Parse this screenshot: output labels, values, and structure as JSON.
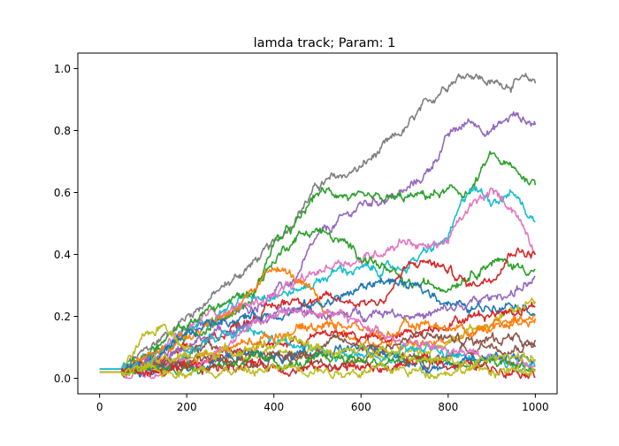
{
  "chart_data": {
    "type": "line",
    "title": "lamda track; Param: 1",
    "xlabel": "",
    "ylabel": "",
    "xlim": [
      -50,
      1050
    ],
    "ylim": [
      -0.05,
      1.05
    ],
    "xticks": [
      0,
      200,
      400,
      600,
      800,
      1000
    ],
    "yticks": [
      0.0,
      0.2,
      0.4,
      0.6,
      0.8,
      1.0
    ],
    "xtick_labels": [
      "0",
      "200",
      "400",
      "600",
      "800",
      "1000"
    ],
    "ytick_labels": [
      "0.0",
      "0.2",
      "0.4",
      "0.6",
      "0.8",
      "1.0"
    ],
    "grid": false,
    "legend": "none",
    "series": [
      {
        "color": "#7f7f7f",
        "start": 0.03,
        "keypoints": [
          [
            0,
            0.03
          ],
          [
            50,
            0.03
          ],
          [
            100,
            0.08
          ],
          [
            200,
            0.2
          ],
          [
            300,
            0.31
          ],
          [
            400,
            0.43
          ],
          [
            500,
            0.62
          ],
          [
            600,
            0.68
          ],
          [
            700,
            0.8
          ],
          [
            800,
            0.96
          ],
          [
            850,
            0.99
          ],
          [
            900,
            0.95
          ],
          [
            1000,
            0.96
          ]
        ]
      },
      {
        "color": "#9467bd",
        "start": 0.02,
        "keypoints": [
          [
            0,
            0.02
          ],
          [
            50,
            0.02
          ],
          [
            150,
            0.1
          ],
          [
            250,
            0.18
          ],
          [
            350,
            0.23
          ],
          [
            450,
            0.32
          ],
          [
            500,
            0.45
          ],
          [
            600,
            0.56
          ],
          [
            700,
            0.6
          ],
          [
            750,
            0.66
          ],
          [
            800,
            0.78
          ],
          [
            850,
            0.83
          ],
          [
            900,
            0.8
          ],
          [
            950,
            0.85
          ],
          [
            1000,
            0.82
          ]
        ]
      },
      {
        "color": "#2ca02c",
        "start": 0.02,
        "keypoints": [
          [
            0,
            0.02
          ],
          [
            50,
            0.02
          ],
          [
            150,
            0.1
          ],
          [
            250,
            0.17
          ],
          [
            350,
            0.25
          ],
          [
            400,
            0.44
          ],
          [
            450,
            0.49
          ],
          [
            500,
            0.6
          ],
          [
            550,
            0.6
          ],
          [
            600,
            0.57
          ],
          [
            700,
            0.58
          ],
          [
            800,
            0.6
          ],
          [
            850,
            0.6
          ],
          [
            900,
            0.72
          ],
          [
            950,
            0.67
          ],
          [
            1000,
            0.63
          ]
        ]
      },
      {
        "color": "#17becf",
        "start": 0.03,
        "keypoints": [
          [
            0,
            0.03
          ],
          [
            50,
            0.03
          ],
          [
            150,
            0.1
          ],
          [
            250,
            0.2
          ],
          [
            350,
            0.27
          ],
          [
            450,
            0.28
          ],
          [
            550,
            0.35
          ],
          [
            650,
            0.35
          ],
          [
            700,
            0.36
          ],
          [
            800,
            0.45
          ],
          [
            850,
            0.62
          ],
          [
            900,
            0.58
          ],
          [
            950,
            0.6
          ],
          [
            1000,
            0.5
          ]
        ]
      },
      {
        "color": "#e377c2",
        "start": 0.02,
        "keypoints": [
          [
            0,
            0.02
          ],
          [
            50,
            0.02
          ],
          [
            150,
            0.1
          ],
          [
            250,
            0.21
          ],
          [
            350,
            0.24
          ],
          [
            450,
            0.3
          ],
          [
            550,
            0.38
          ],
          [
            600,
            0.38
          ],
          [
            700,
            0.45
          ],
          [
            750,
            0.42
          ],
          [
            800,
            0.45
          ],
          [
            850,
            0.55
          ],
          [
            900,
            0.6
          ],
          [
            950,
            0.55
          ],
          [
            1000,
            0.42
          ]
        ]
      },
      {
        "color": "#2ca02c",
        "start": 0.02,
        "keypoints": [
          [
            0,
            0.02
          ],
          [
            50,
            0.02
          ],
          [
            150,
            0.12
          ],
          [
            250,
            0.22
          ],
          [
            300,
            0.25
          ],
          [
            350,
            0.28
          ],
          [
            400,
            0.38
          ],
          [
            450,
            0.46
          ],
          [
            500,
            0.48
          ],
          [
            550,
            0.44
          ],
          [
            600,
            0.4
          ],
          [
            650,
            0.36
          ],
          [
            700,
            0.3
          ],
          [
            800,
            0.3
          ],
          [
            900,
            0.38
          ],
          [
            1000,
            0.35
          ]
        ]
      },
      {
        "color": "#d62728",
        "start": 0.02,
        "keypoints": [
          [
            0,
            0.02
          ],
          [
            50,
            0.02
          ],
          [
            150,
            0.06
          ],
          [
            250,
            0.12
          ],
          [
            350,
            0.2
          ],
          [
            450,
            0.26
          ],
          [
            550,
            0.25
          ],
          [
            650,
            0.25
          ],
          [
            700,
            0.35
          ],
          [
            750,
            0.38
          ],
          [
            800,
            0.35
          ],
          [
            850,
            0.3
          ],
          [
            900,
            0.33
          ],
          [
            950,
            0.42
          ],
          [
            1000,
            0.4
          ]
        ]
      },
      {
        "color": "#ff7f0e",
        "start": 0.02,
        "keypoints": [
          [
            0,
            0.02
          ],
          [
            50,
            0.02
          ],
          [
            150,
            0.1
          ],
          [
            250,
            0.18
          ],
          [
            300,
            0.22
          ],
          [
            350,
            0.26
          ],
          [
            400,
            0.37
          ],
          [
            450,
            0.32
          ],
          [
            500,
            0.25
          ],
          [
            550,
            0.15
          ],
          [
            600,
            0.12
          ],
          [
            700,
            0.1
          ],
          [
            800,
            0.12
          ],
          [
            900,
            0.16
          ],
          [
            1000,
            0.2
          ]
        ]
      },
      {
        "color": "#1f77b4",
        "start": 0.02,
        "keypoints": [
          [
            0,
            0.02
          ],
          [
            50,
            0.02
          ],
          [
            150,
            0.08
          ],
          [
            250,
            0.18
          ],
          [
            350,
            0.2
          ],
          [
            450,
            0.22
          ],
          [
            550,
            0.26
          ],
          [
            650,
            0.32
          ],
          [
            750,
            0.28
          ],
          [
            850,
            0.22
          ],
          [
            950,
            0.25
          ],
          [
            1000,
            0.22
          ]
        ]
      },
      {
        "color": "#9467bd",
        "start": 0.02,
        "keypoints": [
          [
            0,
            0.02
          ],
          [
            50,
            0.02
          ],
          [
            150,
            0.06
          ],
          [
            250,
            0.14
          ],
          [
            350,
            0.18
          ],
          [
            450,
            0.22
          ],
          [
            550,
            0.2
          ],
          [
            650,
            0.22
          ],
          [
            750,
            0.2
          ],
          [
            850,
            0.24
          ],
          [
            950,
            0.28
          ],
          [
            1000,
            0.32
          ]
        ]
      },
      {
        "color": "#bcbd22",
        "start": 0.02,
        "keypoints": [
          [
            0,
            0.02
          ],
          [
            50,
            0.02
          ],
          [
            100,
            0.12
          ],
          [
            150,
            0.18
          ],
          [
            200,
            0.1
          ],
          [
            300,
            0.06
          ],
          [
            400,
            0.08
          ],
          [
            500,
            0.1
          ],
          [
            600,
            0.06
          ],
          [
            700,
            0.08
          ],
          [
            800,
            0.12
          ],
          [
            900,
            0.18
          ],
          [
            1000,
            0.25
          ]
        ]
      },
      {
        "color": "#d62728",
        "start": 0.02,
        "keypoints": [
          [
            0,
            0.02
          ],
          [
            50,
            0.02
          ],
          [
            150,
            0.04
          ],
          [
            250,
            0.06
          ],
          [
            350,
            0.1
          ],
          [
            450,
            0.12
          ],
          [
            550,
            0.15
          ],
          [
            650,
            0.12
          ],
          [
            750,
            0.16
          ],
          [
            850,
            0.2
          ],
          [
            950,
            0.22
          ],
          [
            1000,
            0.24
          ]
        ]
      },
      {
        "color": "#8c564b",
        "start": 0.02,
        "keypoints": [
          [
            0,
            0.02
          ],
          [
            50,
            0.02
          ],
          [
            150,
            0.05
          ],
          [
            250,
            0.1
          ],
          [
            350,
            0.08
          ],
          [
            450,
            0.06
          ],
          [
            550,
            0.04
          ],
          [
            650,
            0.08
          ],
          [
            750,
            0.05
          ],
          [
            850,
            0.1
          ],
          [
            950,
            0.14
          ],
          [
            1000,
            0.1
          ]
        ]
      },
      {
        "color": "#17becf",
        "start": 0.03,
        "keypoints": [
          [
            0,
            0.03
          ],
          [
            50,
            0.03
          ],
          [
            150,
            0.05
          ],
          [
            250,
            0.12
          ],
          [
            350,
            0.15
          ],
          [
            450,
            0.1
          ],
          [
            550,
            0.08
          ],
          [
            650,
            0.06
          ],
          [
            750,
            0.1
          ],
          [
            850,
            0.06
          ],
          [
            950,
            0.04
          ],
          [
            1000,
            0.05
          ]
        ]
      },
      {
        "color": "#ff7f0e",
        "start": 0.02,
        "keypoints": [
          [
            0,
            0.02
          ],
          [
            50,
            0.02
          ],
          [
            150,
            0.04
          ],
          [
            250,
            0.08
          ],
          [
            350,
            0.12
          ],
          [
            450,
            0.16
          ],
          [
            550,
            0.18
          ],
          [
            650,
            0.14
          ],
          [
            750,
            0.18
          ],
          [
            850,
            0.15
          ],
          [
            950,
            0.2
          ],
          [
            1000,
            0.18
          ]
        ]
      },
      {
        "color": "#e377c2",
        "start": 0.02,
        "keypoints": [
          [
            0,
            0.02
          ],
          [
            50,
            0.02
          ],
          [
            150,
            0.03
          ],
          [
            250,
            0.06
          ],
          [
            350,
            0.18
          ],
          [
            450,
            0.22
          ],
          [
            550,
            0.2
          ],
          [
            650,
            0.15
          ],
          [
            750,
            0.1
          ],
          [
            850,
            0.08
          ],
          [
            950,
            0.06
          ],
          [
            1000,
            0.04
          ]
        ]
      },
      {
        "color": "#1f77b4",
        "start": 0.02,
        "keypoints": [
          [
            0,
            0.02
          ],
          [
            50,
            0.02
          ],
          [
            150,
            0.03
          ],
          [
            250,
            0.05
          ],
          [
            350,
            0.08
          ],
          [
            450,
            0.06
          ],
          [
            550,
            0.1
          ],
          [
            650,
            0.08
          ],
          [
            750,
            0.04
          ],
          [
            850,
            0.05
          ],
          [
            950,
            0.08
          ],
          [
            1000,
            0.06
          ]
        ]
      },
      {
        "color": "#8c564b",
        "start": 0.02,
        "keypoints": [
          [
            0,
            0.02
          ],
          [
            50,
            0.02
          ],
          [
            150,
            0.04
          ],
          [
            250,
            0.07
          ],
          [
            350,
            0.05
          ],
          [
            450,
            0.08
          ],
          [
            550,
            0.12
          ],
          [
            650,
            0.1
          ],
          [
            750,
            0.14
          ],
          [
            850,
            0.12
          ],
          [
            950,
            0.1
          ],
          [
            1000,
            0.12
          ]
        ]
      },
      {
        "color": "#2ca02c",
        "start": 0.02,
        "keypoints": [
          [
            0,
            0.02
          ],
          [
            50,
            0.02
          ],
          [
            150,
            0.03
          ],
          [
            250,
            0.04
          ],
          [
            350,
            0.06
          ],
          [
            450,
            0.04
          ],
          [
            550,
            0.07
          ],
          [
            650,
            0.05
          ],
          [
            750,
            0.06
          ],
          [
            850,
            0.04
          ],
          [
            950,
            0.05
          ],
          [
            1000,
            0.03
          ]
        ]
      },
      {
        "color": "#d62728",
        "start": 0.02,
        "keypoints": [
          [
            0,
            0.02
          ],
          [
            50,
            0.02
          ],
          [
            150,
            0.02
          ],
          [
            250,
            0.03
          ],
          [
            350,
            0.05
          ],
          [
            450,
            0.03
          ],
          [
            550,
            0.04
          ],
          [
            650,
            0.03
          ],
          [
            750,
            0.06
          ],
          [
            850,
            0.04
          ],
          [
            950,
            0.03
          ],
          [
            1000,
            0.02
          ]
        ]
      },
      {
        "color": "#bcbd22",
        "start": 0.02,
        "keypoints": [
          [
            0,
            0.02
          ],
          [
            50,
            0.02
          ],
          [
            150,
            0.06
          ],
          [
            250,
            0.08
          ],
          [
            350,
            0.1
          ],
          [
            450,
            0.12
          ],
          [
            550,
            0.08
          ],
          [
            650,
            0.1
          ],
          [
            750,
            0.06
          ],
          [
            850,
            0.04
          ],
          [
            950,
            0.08
          ],
          [
            1000,
            0.06
          ]
        ]
      },
      {
        "color": "#bcbd22",
        "start": 0.02,
        "keypoints": [
          [
            0,
            0.02
          ],
          [
            50,
            0.02
          ],
          [
            150,
            0.02
          ],
          [
            250,
            0.03
          ],
          [
            350,
            0.02
          ],
          [
            450,
            0.04
          ],
          [
            550,
            0.02
          ],
          [
            650,
            0.03
          ],
          [
            750,
            0.02
          ],
          [
            850,
            0.03
          ],
          [
            950,
            0.02
          ],
          [
            1000,
            0.02
          ]
        ]
      }
    ]
  }
}
